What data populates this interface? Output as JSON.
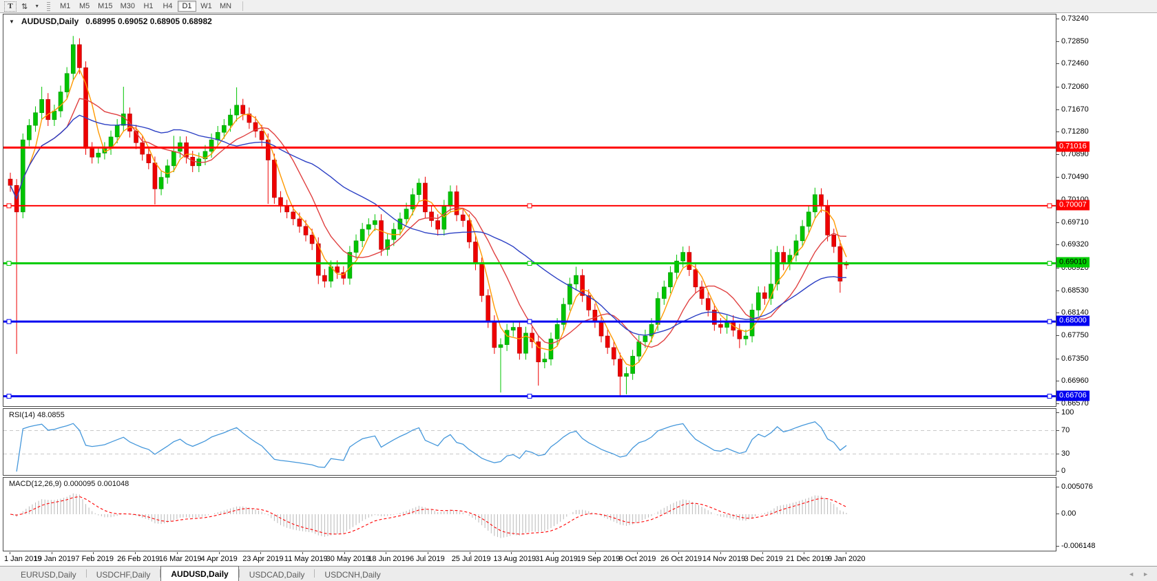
{
  "toolbar": {
    "text_tool_label": "T",
    "arrows_icon": "⇅",
    "caret_icon": "▼",
    "timeframes": [
      {
        "label": "M1",
        "active": false
      },
      {
        "label": "M5",
        "active": false
      },
      {
        "label": "M15",
        "active": false
      },
      {
        "label": "M30",
        "active": false
      },
      {
        "label": "H1",
        "active": false
      },
      {
        "label": "H4",
        "active": false
      },
      {
        "label": "D1",
        "active": true
      },
      {
        "label": "W1",
        "active": false
      },
      {
        "label": "MN",
        "active": false
      }
    ]
  },
  "chart_header": {
    "collapse_icon": "▼",
    "title": "AUDUSD,Daily",
    "ohlc": "0.68995 0.69052 0.68905 0.68982"
  },
  "chart_data": {
    "type": "candlestick",
    "symbol": "AUDUSD",
    "timeframe": "Daily",
    "y_range": {
      "max": 0.73323,
      "min": 0.66534
    },
    "y_ticks": [
      "0.73240",
      "0.72850",
      "0.72460",
      "0.72060",
      "0.71670",
      "0.71280",
      "0.70890",
      "0.70490",
      "0.70100",
      "0.69710",
      "0.69320",
      "0.68920",
      "0.68530",
      "0.68140",
      "0.67750",
      "0.67350",
      "0.66960",
      "0.66570"
    ],
    "x_axis_dates": [
      "1 Jan 2019",
      "19 Jan 2019",
      "7 Feb 2019",
      "26 Feb 2019",
      "16 Mar 2019",
      "4 Apr 2019",
      "23 Apr 2019",
      "11 May 2019",
      "30 May 2019",
      "18 Jun 2019",
      "6 Jul 2019",
      "25 Jul 2019",
      "13 Aug 2019",
      "31 Aug 2019",
      "19 Sep 2019",
      "8 Oct 2019",
      "26 Oct 2019",
      "14 Nov 2019",
      "3 Dec 2019",
      "21 Dec 2019",
      "9 Jan 2020"
    ],
    "horizontal_lines": [
      {
        "label": "0.71016",
        "value": 0.71016,
        "color": "#FF0000",
        "width": 3,
        "selected": false,
        "badge_text_color": "#FFFFFF"
      },
      {
        "label": "0.70007",
        "value": 0.70007,
        "color": "#FF0000",
        "width": 2,
        "selected": true,
        "badge_text_color": "#FFFFFF"
      },
      {
        "label": "0.69010",
        "value": 0.6901,
        "color": "#00CC00",
        "width": 3,
        "selected": true,
        "badge_text_color": "#000000"
      },
      {
        "label": "0.68000",
        "value": 0.68,
        "color": "#0000F0",
        "width": 3,
        "selected": true,
        "badge_text_color": "#FFFFFF"
      },
      {
        "label": "0.66706",
        "value": 0.66706,
        "color": "#0000F0",
        "width": 3,
        "selected": true,
        "badge_text_color": "#FFFFFF"
      }
    ],
    "moving_averages": [
      {
        "name": "ma-fast",
        "color": "#FF9900",
        "period": 4
      },
      {
        "name": "ma-medium",
        "color": "#E04040",
        "period": 10
      },
      {
        "name": "ma-slow",
        "color": "#2B3FC4",
        "period": 25
      }
    ],
    "colors": {
      "up": "#00C400",
      "down": "#EE0000",
      "up_edge": "#009300",
      "down_edge": "#B00000",
      "histogram": "#B8B8B8",
      "signal": "#FF0000",
      "rsi": "#4497DB",
      "level_dash": "#C8C8C8"
    },
    "ohlc_bars": [
      [
        0.7047,
        0.7058,
        0.7025,
        0.7036
      ],
      [
        0.7036,
        0.7047,
        0.6744,
        0.699
      ],
      [
        0.699,
        0.7126,
        0.6979,
        0.7115
      ],
      [
        0.7115,
        0.7151,
        0.7104,
        0.714
      ],
      [
        0.714,
        0.7173,
        0.7129,
        0.7162
      ],
      [
        0.7162,
        0.7207,
        0.7151,
        0.7185
      ],
      [
        0.7185,
        0.7196,
        0.7139,
        0.715
      ],
      [
        0.715,
        0.7176,
        0.7139,
        0.7165
      ],
      [
        0.7165,
        0.7209,
        0.7154,
        0.7198
      ],
      [
        0.7198,
        0.7241,
        0.7187,
        0.723
      ],
      [
        0.723,
        0.7295,
        0.7219,
        0.728
      ],
      [
        0.728,
        0.7291,
        0.7229,
        0.724
      ],
      [
        0.724,
        0.7251,
        0.7089,
        0.71
      ],
      [
        0.71,
        0.7111,
        0.7074,
        0.7085
      ],
      [
        0.7085,
        0.7103,
        0.7074,
        0.7092
      ],
      [
        0.7092,
        0.7111,
        0.7081,
        0.71
      ],
      [
        0.71,
        0.7131,
        0.7089,
        0.712
      ],
      [
        0.712,
        0.7151,
        0.7109,
        0.714
      ],
      [
        0.714,
        0.7207,
        0.7129,
        0.716
      ],
      [
        0.716,
        0.7171,
        0.7119,
        0.713
      ],
      [
        0.713,
        0.7141,
        0.7099,
        0.711
      ],
      [
        0.711,
        0.7121,
        0.7079,
        0.709
      ],
      [
        0.709,
        0.7101,
        0.7064,
        0.7075
      ],
      [
        0.7075,
        0.7086,
        0.7003,
        0.703
      ],
      [
        0.703,
        0.7061,
        0.7019,
        0.705
      ],
      [
        0.705,
        0.7081,
        0.7039,
        0.707
      ],
      [
        0.707,
        0.7122,
        0.7059,
        0.7095
      ],
      [
        0.7095,
        0.7121,
        0.7084,
        0.711
      ],
      [
        0.711,
        0.7121,
        0.7074,
        0.7085
      ],
      [
        0.7085,
        0.7096,
        0.7059,
        0.707
      ],
      [
        0.707,
        0.7093,
        0.7059,
        0.7082
      ],
      [
        0.7082,
        0.7106,
        0.7071,
        0.7095
      ],
      [
        0.7095,
        0.7126,
        0.7084,
        0.7115
      ],
      [
        0.7115,
        0.7139,
        0.7104,
        0.7128
      ],
      [
        0.7128,
        0.7151,
        0.7117,
        0.714
      ],
      [
        0.714,
        0.7169,
        0.7129,
        0.7158
      ],
      [
        0.7158,
        0.7206,
        0.7147,
        0.7175
      ],
      [
        0.7175,
        0.7186,
        0.7149,
        0.716
      ],
      [
        0.716,
        0.7171,
        0.7134,
        0.7145
      ],
      [
        0.7145,
        0.7156,
        0.7119,
        0.713
      ],
      [
        0.713,
        0.7141,
        0.7104,
        0.7115
      ],
      [
        0.7115,
        0.7126,
        0.7004,
        0.708
      ],
      [
        0.708,
        0.7091,
        0.7004,
        0.7015
      ],
      [
        0.7015,
        0.7026,
        0.6989,
        0.7
      ],
      [
        0.7,
        0.7011,
        0.6979,
        0.699
      ],
      [
        0.699,
        0.7001,
        0.6967,
        0.6978
      ],
      [
        0.6978,
        0.6989,
        0.6954,
        0.6965
      ],
      [
        0.6965,
        0.6976,
        0.6939,
        0.695
      ],
      [
        0.695,
        0.6961,
        0.6924,
        0.6935
      ],
      [
        0.6935,
        0.6946,
        0.6865,
        0.688
      ],
      [
        0.688,
        0.6891,
        0.6859,
        0.687
      ],
      [
        0.687,
        0.6906,
        0.6859,
        0.6895
      ],
      [
        0.6895,
        0.6906,
        0.6874,
        0.6885
      ],
      [
        0.6885,
        0.6896,
        0.6864,
        0.6875
      ],
      [
        0.6875,
        0.6931,
        0.6864,
        0.692
      ],
      [
        0.692,
        0.6951,
        0.6909,
        0.694
      ],
      [
        0.694,
        0.6971,
        0.6929,
        0.696
      ],
      [
        0.696,
        0.6979,
        0.6949,
        0.6968
      ],
      [
        0.6968,
        0.6986,
        0.6957,
        0.6975
      ],
      [
        0.6975,
        0.6986,
        0.6914,
        0.6925
      ],
      [
        0.6925,
        0.6953,
        0.6914,
        0.6942
      ],
      [
        0.6942,
        0.6971,
        0.6931,
        0.696
      ],
      [
        0.696,
        0.6989,
        0.6949,
        0.6978
      ],
      [
        0.6978,
        0.7006,
        0.6967,
        0.6995
      ],
      [
        0.6995,
        0.7031,
        0.6984,
        0.702
      ],
      [
        0.702,
        0.7048,
        0.7009,
        0.704
      ],
      [
        0.704,
        0.7051,
        0.6979,
        0.699
      ],
      [
        0.699,
        0.7001,
        0.6964,
        0.6975
      ],
      [
        0.6975,
        0.6986,
        0.6949,
        0.696
      ],
      [
        0.696,
        0.7011,
        0.6949,
        0.7
      ],
      [
        0.7,
        0.7036,
        0.6989,
        0.7025
      ],
      [
        0.7025,
        0.7036,
        0.6974,
        0.6985
      ],
      [
        0.6985,
        0.6996,
        0.6964,
        0.6975
      ],
      [
        0.6975,
        0.6986,
        0.6927,
        0.6938
      ],
      [
        0.6938,
        0.6949,
        0.6889,
        0.69
      ],
      [
        0.69,
        0.6911,
        0.6834,
        0.6845
      ],
      [
        0.6845,
        0.6856,
        0.6789,
        0.68
      ],
      [
        0.68,
        0.6811,
        0.6744,
        0.6755
      ],
      [
        0.6755,
        0.6771,
        0.6677,
        0.676
      ],
      [
        0.676,
        0.6796,
        0.6749,
        0.6785
      ],
      [
        0.6785,
        0.6801,
        0.6774,
        0.679
      ],
      [
        0.679,
        0.6801,
        0.6734,
        0.6745
      ],
      [
        0.6745,
        0.6791,
        0.6734,
        0.678
      ],
      [
        0.678,
        0.6791,
        0.6754,
        0.6765
      ],
      [
        0.6765,
        0.6776,
        0.6689,
        0.673
      ],
      [
        0.673,
        0.6746,
        0.6719,
        0.6735
      ],
      [
        0.6735,
        0.6781,
        0.6724,
        0.677
      ],
      [
        0.677,
        0.6806,
        0.6759,
        0.6795
      ],
      [
        0.6795,
        0.6841,
        0.6784,
        0.683
      ],
      [
        0.683,
        0.6876,
        0.6819,
        0.6865
      ],
      [
        0.6865,
        0.6895,
        0.6854,
        0.688
      ],
      [
        0.688,
        0.6891,
        0.6834,
        0.6845
      ],
      [
        0.6845,
        0.6856,
        0.6809,
        0.682
      ],
      [
        0.682,
        0.6831,
        0.6789,
        0.68
      ],
      [
        0.68,
        0.6811,
        0.6764,
        0.6775
      ],
      [
        0.6775,
        0.6786,
        0.6744,
        0.6755
      ],
      [
        0.6755,
        0.6766,
        0.6724,
        0.6735
      ],
      [
        0.6735,
        0.6746,
        0.6671,
        0.6705
      ],
      [
        0.6705,
        0.6721,
        0.6674,
        0.671
      ],
      [
        0.671,
        0.6751,
        0.6699,
        0.674
      ],
      [
        0.674,
        0.6776,
        0.6729,
        0.6765
      ],
      [
        0.6765,
        0.6786,
        0.6754,
        0.6775
      ],
      [
        0.6775,
        0.6806,
        0.6764,
        0.6795
      ],
      [
        0.6795,
        0.6851,
        0.6784,
        0.684
      ],
      [
        0.684,
        0.6871,
        0.6829,
        0.686
      ],
      [
        0.686,
        0.6896,
        0.6849,
        0.6885
      ],
      [
        0.6885,
        0.6916,
        0.6874,
        0.6905
      ],
      [
        0.6905,
        0.693,
        0.6894,
        0.692
      ],
      [
        0.692,
        0.6931,
        0.6879,
        0.689
      ],
      [
        0.689,
        0.6901,
        0.6849,
        0.686
      ],
      [
        0.686,
        0.6871,
        0.6829,
        0.684
      ],
      [
        0.684,
        0.6851,
        0.6809,
        0.682
      ],
      [
        0.682,
        0.6831,
        0.6784,
        0.6795
      ],
      [
        0.6795,
        0.6806,
        0.6779,
        0.679
      ],
      [
        0.679,
        0.6811,
        0.6779,
        0.68
      ],
      [
        0.68,
        0.6811,
        0.6774,
        0.6785
      ],
      [
        0.6785,
        0.6796,
        0.6754,
        0.677
      ],
      [
        0.677,
        0.6786,
        0.6759,
        0.6775
      ],
      [
        0.6775,
        0.6831,
        0.6764,
        0.682
      ],
      [
        0.682,
        0.6861,
        0.6809,
        0.685
      ],
      [
        0.685,
        0.6861,
        0.6829,
        0.684
      ],
      [
        0.684,
        0.6925,
        0.6829,
        0.6865
      ],
      [
        0.6865,
        0.6931,
        0.6854,
        0.692
      ],
      [
        0.692,
        0.6931,
        0.6889,
        0.69
      ],
      [
        0.69,
        0.6926,
        0.6889,
        0.6915
      ],
      [
        0.6915,
        0.6951,
        0.6904,
        0.694
      ],
      [
        0.694,
        0.6976,
        0.6929,
        0.6965
      ],
      [
        0.6965,
        0.7001,
        0.6954,
        0.699
      ],
      [
        0.699,
        0.7032,
        0.6979,
        0.702
      ],
      [
        0.702,
        0.7031,
        0.6989,
        0.7
      ],
      [
        0.7,
        0.7011,
        0.6939,
        0.695
      ],
      [
        0.695,
        0.6961,
        0.6919,
        0.693
      ],
      [
        0.693,
        0.6941,
        0.685,
        0.687
      ],
      [
        0.69,
        0.6905,
        0.6891,
        0.6898
      ]
    ],
    "sub_charts": [
      {
        "type": "line",
        "name": "RSI",
        "label": "RSI(14) 48.0855",
        "levels": [
          "100",
          "70",
          "30",
          "0"
        ],
        "dashed_levels": [
          70,
          30
        ],
        "range": [
          0,
          100
        ]
      },
      {
        "type": "macd",
        "name": "MACD",
        "label": "MACD(12,26,9) 0.000095 0.001048",
        "axis_labels": [
          "0.005076",
          "0.00",
          "-0.006148"
        ],
        "axis_values": [
          0.005076,
          0,
          -0.006148
        ]
      }
    ]
  },
  "tab_bar": {
    "tabs": [
      {
        "label": "EURUSD,Daily",
        "active": false
      },
      {
        "label": "USDCHF,Daily",
        "active": false
      },
      {
        "label": "AUDUSD,Daily",
        "active": true
      },
      {
        "label": "USDCAD,Daily",
        "active": false
      },
      {
        "label": "USDCNH,Daily",
        "active": false
      }
    ],
    "scroll_left": "◄",
    "scroll_right": "►"
  }
}
